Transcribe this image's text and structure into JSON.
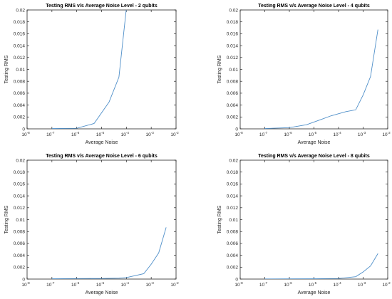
{
  "chart_data": [
    {
      "type": "line",
      "title": "Testing RMS v/s Average Noise Level - 2 qubits",
      "xlabel": "Average Noise",
      "ylabel": "Testing RMS",
      "xscale": "log",
      "xlim": [
        1e-08,
        0.01
      ],
      "ylim": [
        0,
        0.02
      ],
      "grid": false,
      "line_color": "#4F8FC9",
      "x": [
        1e-07,
        5e-07,
        1e-06,
        5e-06,
        2e-05,
        5e-05,
        0.0001
      ],
      "y": [
        5e-05,
        8e-05,
        0.0001,
        0.0009,
        0.0045,
        0.0087,
        0.0203
      ]
    },
    {
      "type": "line",
      "title": "Testing RMS v/s Average Noise Level - 4 qubits",
      "xlabel": "Average Noise",
      "ylabel": "Testing RMS",
      "xscale": "log",
      "xlim": [
        1e-08,
        0.01
      ],
      "ylim": [
        0,
        0.02
      ],
      "grid": false,
      "line_color": "#4F8FC9",
      "x": [
        1e-07,
        1e-06,
        5e-06,
        2e-05,
        5e-05,
        0.0002,
        0.0005,
        0.001,
        0.002,
        0.004
      ],
      "y": [
        5e-05,
        0.0002,
        0.0007,
        0.0016,
        0.0022,
        0.0029,
        0.0032,
        0.0057,
        0.0088,
        0.0167
      ]
    },
    {
      "type": "line",
      "title": "Testing RMS v/s Average Noise Level - 6 qubits",
      "xlabel": "Average Noise",
      "ylabel": "Testing RMS",
      "xscale": "log",
      "xlim": [
        1e-08,
        0.01
      ],
      "ylim": [
        0,
        0.02
      ],
      "grid": false,
      "line_color": "#4F8FC9",
      "x": [
        1e-07,
        1e-06,
        1e-05,
        5e-05,
        0.0001,
        0.0005,
        0.001,
        0.002,
        0.004
      ],
      "y": [
        5e-05,
        8e-05,
        0.0001,
        0.00015,
        0.00025,
        0.0009,
        0.0025,
        0.0044,
        0.0087
      ]
    },
    {
      "type": "line",
      "title": "Testing RMS v/s Average Noise Level - 8 qubits",
      "xlabel": "Average Noise",
      "ylabel": "Testing RMS",
      "xscale": "log",
      "xlim": [
        1e-08,
        0.01
      ],
      "ylim": [
        0,
        0.02
      ],
      "grid": false,
      "line_color": "#4F8FC9",
      "x": [
        1e-07,
        1e-06,
        1e-05,
        0.0001,
        0.0005,
        0.001,
        0.002,
        0.004
      ],
      "y": [
        2e-05,
        4e-05,
        5e-05,
        0.0001,
        0.0004,
        0.0012,
        0.0022,
        0.0043
      ]
    }
  ]
}
